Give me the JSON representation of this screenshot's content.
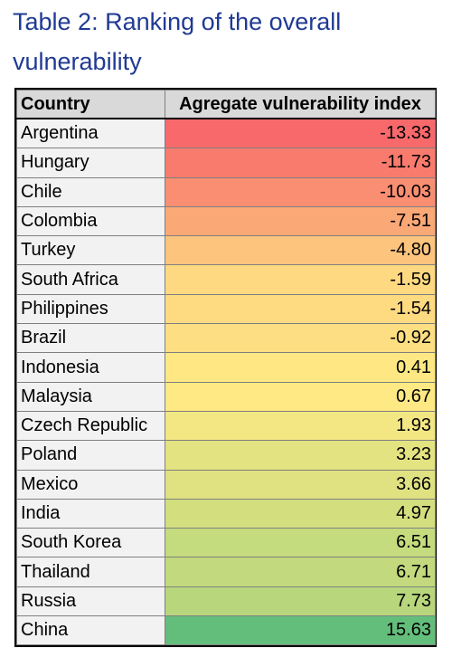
{
  "title": "Table 2: Ranking of the overall vulnerability",
  "chart_data": {
    "type": "table",
    "title": "Table 2: Ranking of the overall vulnerability",
    "columns": [
      "Country",
      "Agregate vulnerability index"
    ],
    "rows": [
      {
        "country": "Argentina",
        "value": "-13.33",
        "color": "#f8696b"
      },
      {
        "country": "Hungary",
        "value": "-11.73",
        "color": "#f97b6e"
      },
      {
        "country": "Chile",
        "value": "-10.03",
        "color": "#fa8e72"
      },
      {
        "country": "Colombia",
        "value": "-7.51",
        "color": "#fba877"
      },
      {
        "country": "Turkey",
        "value": "-4.80",
        "color": "#fdc47d"
      },
      {
        "country": "South Africa",
        "value": "-1.59",
        "color": "#fed981"
      },
      {
        "country": "Philippines",
        "value": "-1.54",
        "color": "#feda81"
      },
      {
        "country": "Brazil",
        "value": "-0.92",
        "color": "#fede82"
      },
      {
        "country": "Indonesia",
        "value": "0.41",
        "color": "#ffe883"
      },
      {
        "country": "Malaysia",
        "value": "0.67",
        "color": "#ffe984"
      },
      {
        "country": "Czech Republic",
        "value": "1.93",
        "color": "#f2e783"
      },
      {
        "country": "Poland",
        "value": "3.23",
        "color": "#e4e381"
      },
      {
        "country": "Mexico",
        "value": "3.66",
        "color": "#e0e281"
      },
      {
        "country": "India",
        "value": "4.97",
        "color": "#d3df7f"
      },
      {
        "country": "South Korea",
        "value": "6.51",
        "color": "#c4db7e"
      },
      {
        "country": "Thailand",
        "value": "6.71",
        "color": "#c2da7d"
      },
      {
        "country": "Russia",
        "value": "7.73",
        "color": "#b8d77c"
      },
      {
        "country": "China",
        "value": "15.63",
        "color": "#63be7b"
      }
    ]
  }
}
